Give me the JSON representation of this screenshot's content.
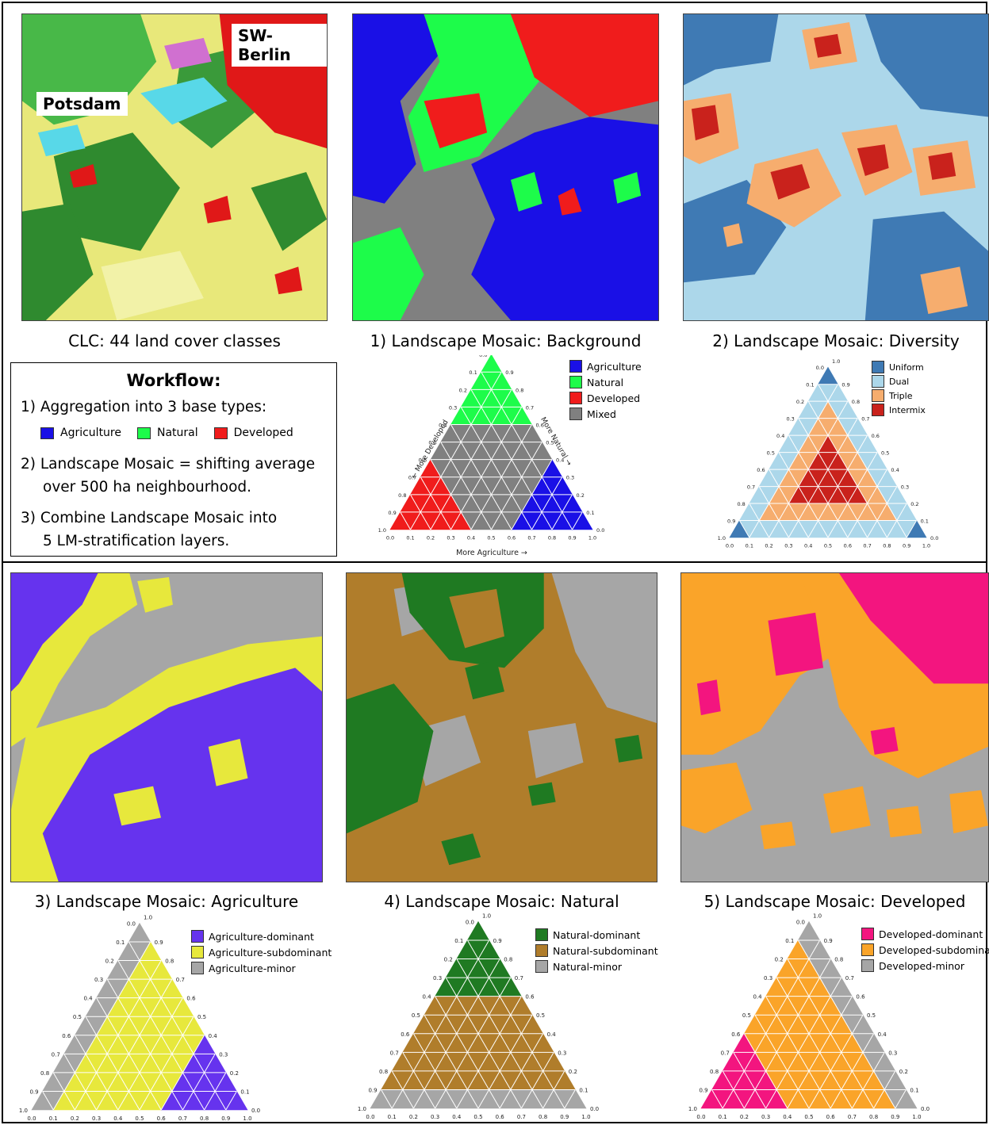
{
  "colors": {
    "agriculture": "#1a10e6",
    "natural": "#1dfc4a",
    "developed": "#f01c1c",
    "mixed": "#808080",
    "uniform": "#3f7ab4",
    "dual": "#acd7ea",
    "triple": "#f6ad6e",
    "intermix": "#c9221c",
    "agri_dominant": "#6633ee",
    "agri_subdominant": "#e7e83c",
    "nat_dominant": "#1f7a22",
    "nat_subdominant": "#b07d2b",
    "dev_dominant": "#f3157f",
    "dev_subdominant": "#faa429",
    "minor_gray": "#a6a6a6"
  },
  "top_left": {
    "label_potsdam": "Potsdam",
    "label_berlin": "SW-Berlin",
    "caption": "CLC: 44 land cover classes"
  },
  "panel1": {
    "caption": "1) Landscape Mosaic: Background",
    "legend": [
      "Agriculture",
      "Natural",
      "Developed",
      "Mixed"
    ],
    "axis_left": "← More Developed",
    "axis_right": "More Natural →",
    "axis_bottom": "More Agriculture →"
  },
  "panel2": {
    "caption": "2) Landscape Mosaic: Diversity",
    "legend": [
      "Uniform",
      "Dual",
      "Triple",
      "Intermix"
    ]
  },
  "workflow": {
    "title": "Workflow:",
    "step1": "1) Aggregation into 3 base types:",
    "legend": [
      "Agriculture",
      "Natural",
      "Developed"
    ],
    "step2a": "2) Landscape Mosaic = shifting average",
    "step2b": "over 500 ha neighbourhood.",
    "step3a": "3) Combine Landscape Mosaic into",
    "step3b": "5 LM-stratification layers."
  },
  "panel3": {
    "caption": "3) Landscape Mosaic: Agriculture",
    "legend": [
      "Agriculture-dominant",
      "Agriculture-subdominant",
      "Agriculture-minor"
    ]
  },
  "panel4": {
    "caption": "4) Landscape Mosaic: Natural",
    "legend": [
      "Natural-dominant",
      "Natural-subdominant",
      "Natural-minor"
    ]
  },
  "panel5": {
    "caption": "5) Landscape Mosaic: Developed",
    "legend": [
      "Developed-dominant",
      "Developed-subdominant",
      "Developed-minor"
    ]
  },
  "ternary_ticks": [
    "0.0",
    "0.1",
    "0.2",
    "0.3",
    "0.4",
    "0.5",
    "0.6",
    "0.7",
    "0.8",
    "0.9",
    "1.0"
  ]
}
